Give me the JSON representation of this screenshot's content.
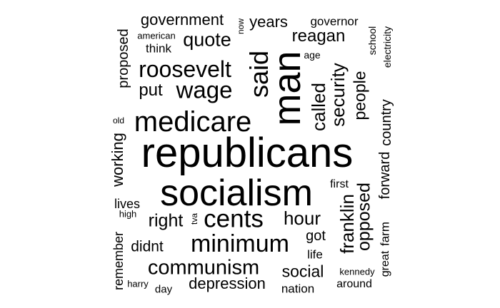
{
  "chart_data": {
    "type": "wordcloud",
    "color": "#000000",
    "words": [
      {
        "text": "republicans",
        "weight": 100
      },
      {
        "text": "socialism",
        "weight": 88
      },
      {
        "text": "man",
        "weight": 72
      },
      {
        "text": "medicare",
        "weight": 68
      },
      {
        "text": "said",
        "weight": 54
      },
      {
        "text": "cents",
        "weight": 52
      },
      {
        "text": "minimum",
        "weight": 48
      },
      {
        "text": "roosevelt",
        "weight": 42
      },
      {
        "text": "wage",
        "weight": 42
      },
      {
        "text": "communism",
        "weight": 40
      },
      {
        "text": "security",
        "weight": 36
      },
      {
        "text": "called",
        "weight": 34
      },
      {
        "text": "franklin",
        "weight": 34
      },
      {
        "text": "opposed",
        "weight": 32
      },
      {
        "text": "hour",
        "weight": 32
      },
      {
        "text": "quote",
        "weight": 30
      },
      {
        "text": "right",
        "weight": 30
      },
      {
        "text": "people",
        "weight": 28
      },
      {
        "text": "reagan",
        "weight": 28
      },
      {
        "text": "social",
        "weight": 28
      },
      {
        "text": "depression",
        "weight": 27
      },
      {
        "text": "put",
        "weight": 27
      },
      {
        "text": "years",
        "weight": 26
      },
      {
        "text": "government",
        "weight": 25
      },
      {
        "text": "working",
        "weight": 25
      },
      {
        "text": "country",
        "weight": 24
      },
      {
        "text": "forward",
        "weight": 24
      },
      {
        "text": "proposed",
        "weight": 23
      },
      {
        "text": "didnt",
        "weight": 22
      },
      {
        "text": "got",
        "weight": 22
      },
      {
        "text": "remember",
        "weight": 21
      },
      {
        "text": "lives",
        "weight": 20
      },
      {
        "text": "nation",
        "weight": 19
      },
      {
        "text": "farm",
        "weight": 19
      },
      {
        "text": "governor",
        "weight": 19
      },
      {
        "text": "think",
        "weight": 19
      },
      {
        "text": "life",
        "weight": 19
      },
      {
        "text": "around",
        "weight": 18
      },
      {
        "text": "first",
        "weight": 18
      },
      {
        "text": "great",
        "weight": 18
      },
      {
        "text": "day",
        "weight": 17
      },
      {
        "text": "school",
        "weight": 16
      },
      {
        "text": "electricity",
        "weight": 16
      },
      {
        "text": "american",
        "weight": 15
      },
      {
        "text": "age",
        "weight": 15
      },
      {
        "text": "high",
        "weight": 15
      },
      {
        "text": "kennedy",
        "weight": 15
      },
      {
        "text": "harry",
        "weight": 14
      },
      {
        "text": "now",
        "weight": 14
      },
      {
        "text": "old",
        "weight": 13
      },
      {
        "text": "tva",
        "weight": 13
      }
    ]
  }
}
